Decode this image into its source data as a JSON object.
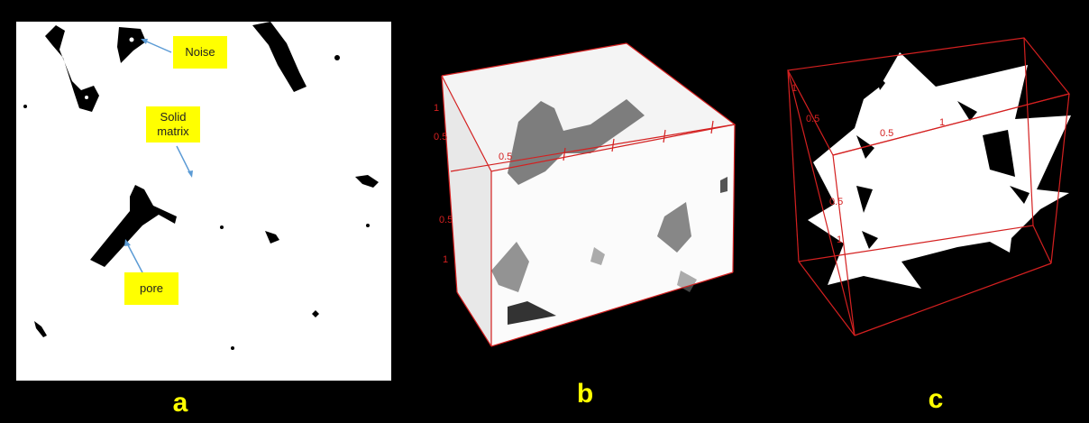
{
  "panel_a": {
    "callouts": {
      "noise": "Noise",
      "solid_matrix": "Solid\nmatrix",
      "pore": "pore"
    },
    "letter": "a"
  },
  "panel_b": {
    "letter": "b",
    "axis_labels": [
      "1",
      "0.5",
      "0.5",
      "0.5",
      "1"
    ]
  },
  "panel_c": {
    "letter": "c",
    "axis_labels": [
      "1",
      "0.5",
      "0.5",
      "1",
      "0.5",
      "1"
    ]
  },
  "colors": {
    "background": "#000000",
    "callout": "#ffff00",
    "letter": "#ffff00",
    "axis": "#d42020",
    "arrow": "#5b9bd5"
  }
}
